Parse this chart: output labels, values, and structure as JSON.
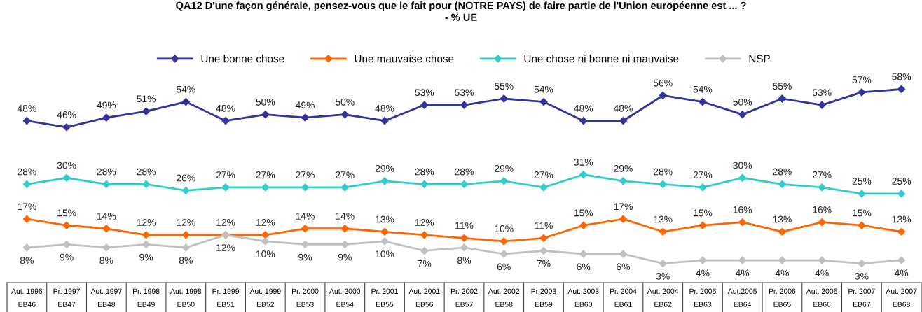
{
  "chart_data": {
    "type": "line",
    "title": "QA12 D'une façon générale, pensez-vous que le fait pour (NOTRE PAYS) de faire partie de l'Union européenne est ... ?\n- % UE",
    "categories": [
      "Aut. 1996\nEB46",
      "Pr. 1997\nEB47",
      "Aut. 1997\nEB48",
      "Pr. 1998\nEB49",
      "Aut. 1998\nEB50",
      "Pr. 1999\nEB51",
      "Aut. 1999\nEB52",
      "Pr. 2000\nEB53",
      "Aut. 2000\nEB54",
      "Pr. 2001\nEB55",
      "Aut. 2001\nEB56",
      "Pr. 2002\nEB57",
      "Aut. 2002\nEB58",
      "Pr 2003\nEB59",
      "Aut. 2003\nEB60",
      "Pr. 2004\nEB61",
      "Aut. 2004\nEB62",
      "Pr. 2005\nEB63",
      "Aut.2005\nEB64",
      "Pr. 2006\nEB65",
      "Aut. 2006\nEB66",
      "Pr. 2007\nEB67",
      "Aut. 2007\nEB68"
    ],
    "series": [
      {
        "name": "Une bonne chose",
        "color": "#333399",
        "values": [
          48,
          46,
          49,
          51,
          54,
          48,
          50,
          49,
          50,
          48,
          53,
          53,
          55,
          54,
          48,
          48,
          56,
          54,
          50,
          55,
          53,
          57,
          58
        ],
        "value_labels": [
          "48%",
          "46%",
          "49%",
          "51%",
          "54%",
          "48%",
          "50%",
          "49%",
          "50%",
          "48%",
          "53%",
          "53%",
          "55%",
          "54%",
          "48%",
          "48%",
          "56%",
          "54%",
          "50%",
          "55%",
          "53%",
          "57%",
          "58%"
        ]
      },
      {
        "name": "Une mauvaise chose",
        "color": "#ff6600",
        "values": [
          17,
          15,
          14,
          12,
          12,
          12,
          12,
          14,
          14,
          13,
          12,
          11,
          10,
          11,
          15,
          17,
          13,
          15,
          16,
          13,
          16,
          15,
          13
        ],
        "value_labels": [
          "17%",
          "15%",
          "14%",
          "12%",
          "12%",
          "12%",
          "12%",
          "14%",
          "14%",
          "13%",
          "12%",
          "11%",
          "10%",
          "11%",
          "15%",
          "17%",
          "13%",
          "15%",
          "16%",
          "13%",
          "16%",
          "15%",
          "13%"
        ]
      },
      {
        "name": "Une chose ni bonne ni mauvaise",
        "color": "#33cccc",
        "values": [
          28,
          30,
          28,
          28,
          26,
          27,
          27,
          27,
          27,
          29,
          28,
          28,
          29,
          27,
          31,
          29,
          28,
          27,
          30,
          28,
          27,
          25,
          25
        ],
        "value_labels": [
          "28%",
          "30%",
          "28%",
          "28%",
          "26%",
          "27%",
          "27%",
          "27%",
          "27%",
          "29%",
          "28%",
          "28%",
          "29%",
          "27%",
          "31%",
          "29%",
          "28%",
          "27%",
          "30%",
          "28%",
          "27%",
          "25%",
          "25%"
        ]
      },
      {
        "name": "NSP",
        "color": "#c0c0c0",
        "values": [
          8,
          9,
          8,
          9,
          8,
          12,
          10,
          9,
          9,
          10,
          7,
          8,
          6,
          7,
          6,
          6,
          3,
          4,
          4,
          4,
          4,
          3,
          4
        ],
        "value_labels": [
          "8%",
          "9%",
          "8%",
          "9%",
          "8%",
          "12%",
          "10%",
          "9%",
          "9%",
          "10%",
          "7%",
          "8%",
          "6%",
          "7%",
          "6%",
          "6%",
          "3%",
          "4%",
          "4%",
          "4%",
          "4%",
          "3%",
          "4%"
        ]
      }
    ],
    "tick_labels": "x",
    "legend": "top",
    "marker": "diamond",
    "line_style": "solid",
    "grid": false
  }
}
